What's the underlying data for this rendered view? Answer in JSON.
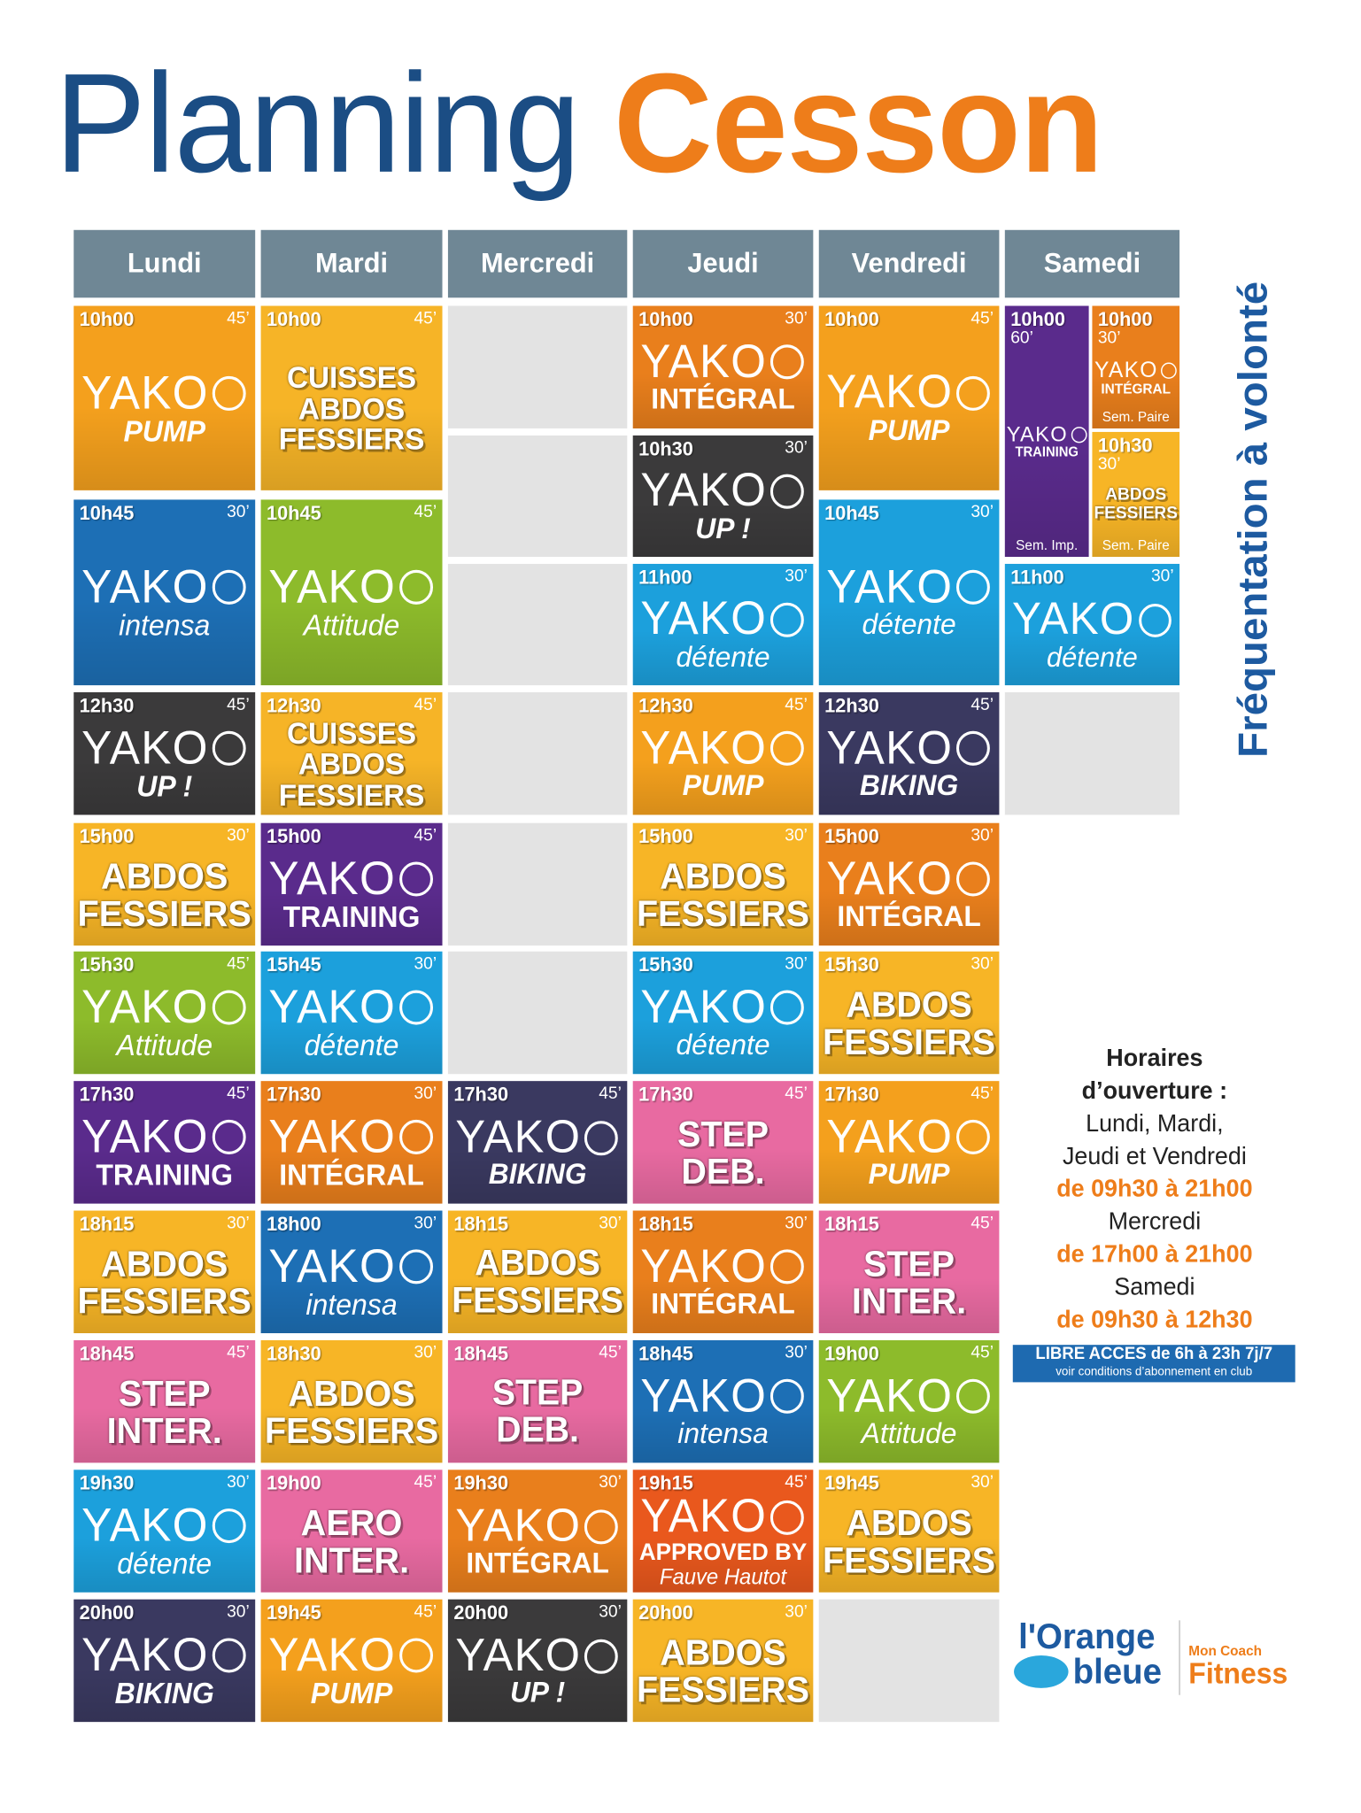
{
  "header": {
    "title": "Planning",
    "subtitle": "Cesson"
  },
  "days": [
    {
      "name": "Lundi",
      "classes": [
        {
          "time": "10h00",
          "duration": "45’",
          "lines": [
            "YAKO",
            "PUMP"
          ],
          "color": "#f4a01d"
        },
        {
          "time": "10h45",
          "duration": "30’",
          "lines": [
            "YAKO",
            "intensa"
          ],
          "color": "#1d6fb5"
        },
        {
          "time": "12h30",
          "duration": "45’",
          "lines": [
            "YAKO",
            "UP !"
          ],
          "color": "#3b3a3b"
        },
        {
          "time": "15h00",
          "duration": "30’",
          "lines": [
            "ABDOS",
            "FESSIERS"
          ],
          "color": "#f7b526"
        },
        {
          "time": "15h30",
          "duration": "45’",
          "lines": [
            "YAKO",
            "Attitude"
          ],
          "color": "#8dbb2b"
        },
        {
          "time": "17h30",
          "duration": "45’",
          "lines": [
            "YAKO",
            "TRAINING"
          ],
          "color": "#5a2b8c"
        },
        {
          "time": "18h15",
          "duration": "30’",
          "lines": [
            "ABDOS",
            "FESSIERS"
          ],
          "color": "#f7b526"
        },
        {
          "time": "18h45",
          "duration": "45’",
          "lines": [
            "STEP",
            "INTER."
          ],
          "color": "#e86aa1"
        },
        {
          "time": "19h30",
          "duration": "30’",
          "lines": [
            "YAKO",
            "détente"
          ],
          "color": "#1ca0dc"
        },
        {
          "time": "20h00",
          "duration": "30’",
          "lines": [
            "YAKO",
            "BIKING"
          ],
          "color": "#3a3960"
        }
      ]
    },
    {
      "name": "Mardi",
      "classes": [
        {
          "time": "10h00",
          "duration": "45’",
          "lines": [
            "CUISSES",
            "ABDOS",
            "FESSIERS"
          ],
          "color": "#f6b427"
        },
        {
          "time": "10h45",
          "duration": "45’",
          "lines": [
            "YAKO",
            "Attitude"
          ],
          "color": "#8dbb2b"
        },
        {
          "time": "12h30",
          "duration": "45’",
          "lines": [
            "CUISSES",
            "ABDOS",
            "FESSIERS"
          ],
          "color": "#f6b427"
        },
        {
          "time": "15h00",
          "duration": "45’",
          "lines": [
            "YAKO",
            "TRAINING"
          ],
          "color": "#5a2b8c"
        },
        {
          "time": "15h45",
          "duration": "30’",
          "lines": [
            "YAKO",
            "détente"
          ],
          "color": "#1ca0dc"
        },
        {
          "time": "17h30",
          "duration": "30’",
          "lines": [
            "YAKO",
            "INTÉGRAL"
          ],
          "color": "#e97f1c"
        },
        {
          "time": "18h00",
          "duration": "30’",
          "lines": [
            "YAKO",
            "intensa"
          ],
          "color": "#1d6fb5"
        },
        {
          "time": "18h30",
          "duration": "30’",
          "lines": [
            "ABDOS",
            "FESSIERS"
          ],
          "color": "#f7b526"
        },
        {
          "time": "19h00",
          "duration": "45’",
          "lines": [
            "AERO",
            "INTER."
          ],
          "color": "#e86aa1"
        },
        {
          "time": "19h45",
          "duration": "45’",
          "lines": [
            "YAKO",
            "PUMP"
          ],
          "color": "#f4a01d"
        }
      ]
    },
    {
      "name": "Mercredi",
      "classes": [
        {
          "time": "17h30",
          "duration": "45’",
          "lines": [
            "YAKO",
            "BIKING"
          ],
          "color": "#3a3960"
        },
        {
          "time": "18h15",
          "duration": "30’",
          "lines": [
            "ABDOS",
            "FESSIERS"
          ],
          "color": "#f7b526"
        },
        {
          "time": "18h45",
          "duration": "45’",
          "lines": [
            "STEP",
            "DEB."
          ],
          "color": "#e86aa1"
        },
        {
          "time": "19h30",
          "duration": "30’",
          "lines": [
            "YAKO",
            "INTÉGRAL"
          ],
          "color": "#e97f1c"
        },
        {
          "time": "20h00",
          "duration": "30’",
          "lines": [
            "YAKO",
            "UP !"
          ],
          "color": "#3b3a3b"
        }
      ]
    },
    {
      "name": "Jeudi",
      "classes": [
        {
          "time": "10h00",
          "duration": "30’",
          "lines": [
            "YAKO",
            "INTÉGRAL"
          ],
          "color": "#e97f1c"
        },
        {
          "time": "10h30",
          "duration": "30’",
          "lines": [
            "YAKO",
            "UP !"
          ],
          "color": "#3b3a3b"
        },
        {
          "time": "11h00",
          "duration": "30’",
          "lines": [
            "YAKO",
            "détente"
          ],
          "color": "#1ca0dc"
        },
        {
          "time": "12h30",
          "duration": "45’",
          "lines": [
            "YAKO",
            "PUMP"
          ],
          "color": "#f4a01d"
        },
        {
          "time": "15h00",
          "duration": "30’",
          "lines": [
            "ABDOS",
            "FESSIERS"
          ],
          "color": "#f7b526"
        },
        {
          "time": "15h30",
          "duration": "30’",
          "lines": [
            "YAKO",
            "détente"
          ],
          "color": "#1ca0dc"
        },
        {
          "time": "17h30",
          "duration": "45’",
          "lines": [
            "STEP",
            "DEB."
          ],
          "color": "#e86aa1"
        },
        {
          "time": "18h15",
          "duration": "30’",
          "lines": [
            "YAKO",
            "INTÉGRAL"
          ],
          "color": "#e97f1c"
        },
        {
          "time": "18h45",
          "duration": "30’",
          "lines": [
            "YAKO",
            "intensa"
          ],
          "color": "#1d6fb5"
        },
        {
          "time": "19h15",
          "duration": "45’",
          "lines": [
            "YAKO",
            "APPROVED BY",
            "Fauve Hautot"
          ],
          "color": "#e9581d"
        },
        {
          "time": "20h00",
          "duration": "30’",
          "lines": [
            "ABDOS",
            "FESSIERS"
          ],
          "color": "#f7b526"
        }
      ]
    },
    {
      "name": "Vendredi",
      "classes": [
        {
          "time": "10h00",
          "duration": "45’",
          "lines": [
            "YAKO",
            "PUMP"
          ],
          "color": "#f4a01d"
        },
        {
          "time": "10h45",
          "duration": "30’",
          "lines": [
            "YAKO",
            "détente"
          ],
          "color": "#1ca0dc"
        },
        {
          "time": "12h30",
          "duration": "45’",
          "lines": [
            "YAKO",
            "BIKING"
          ],
          "color": "#3a3960"
        },
        {
          "time": "15h00",
          "duration": "30’",
          "lines": [
            "YAKO",
            "INTÉGRAL"
          ],
          "color": "#e97f1c"
        },
        {
          "time": "15h30",
          "duration": "30’",
          "lines": [
            "ABDOS",
            "FESSIERS"
          ],
          "color": "#f7b526"
        },
        {
          "time": "17h30",
          "duration": "45’",
          "lines": [
            "YAKO",
            "PUMP"
          ],
          "color": "#f4a01d"
        },
        {
          "time": "18h15",
          "duration": "45’",
          "lines": [
            "STEP",
            "INTER."
          ],
          "color": "#e86aa1"
        },
        {
          "time": "19h00",
          "duration": "45’",
          "lines": [
            "YAKO",
            "Attitude"
          ],
          "color": "#8dbb2b"
        },
        {
          "time": "19h45",
          "duration": "30’",
          "lines": [
            "ABDOS",
            "FESSIERS"
          ],
          "color": "#f7b526"
        }
      ]
    },
    {
      "name": "Samedi",
      "classes": [
        {
          "time": "10h00",
          "duration": "60’",
          "lines": [
            "YAKO",
            "TRAINING"
          ],
          "note": "Sem. Imp.",
          "color": "#5a2b8c"
        },
        {
          "time": "10h00",
          "duration": "30’",
          "lines": [
            "YAKO",
            "INTÉGRAL"
          ],
          "note": "Sem. Paire",
          "color": "#e97f1c"
        },
        {
          "time": "10h30",
          "duration": "30’",
          "lines": [
            "ABDOS",
            "FESSIERS"
          ],
          "note": "Sem. Paire",
          "color": "#f7b526"
        },
        {
          "time": "11h00",
          "duration": "30’",
          "lines": [
            "YAKO",
            "détente"
          ],
          "color": "#1ca0dc"
        }
      ]
    }
  ],
  "side_label": "Fréquentation à volonté",
  "hours": {
    "title": [
      "Horaires",
      "d’ouverture :"
    ],
    "groups": [
      {
        "days": [
          "Lundi, Mardi,",
          "Jeudi et Vendredi"
        ],
        "time": "de 09h30 à 21h00"
      },
      {
        "days": [
          "Mercredi"
        ],
        "time": "de 17h00 à 21h00"
      },
      {
        "days": [
          "Samedi"
        ],
        "time": "de 09h30 à 12h30"
      }
    ]
  },
  "access": {
    "title": "LIBRE ACCES de 6h à 23h 7j/7",
    "note": "voir conditions d’abonnement en club"
  },
  "logo": {
    "brand": [
      "l'Orange",
      "bleue"
    ],
    "tagline": [
      "Mon Coach",
      "Fitness"
    ]
  }
}
